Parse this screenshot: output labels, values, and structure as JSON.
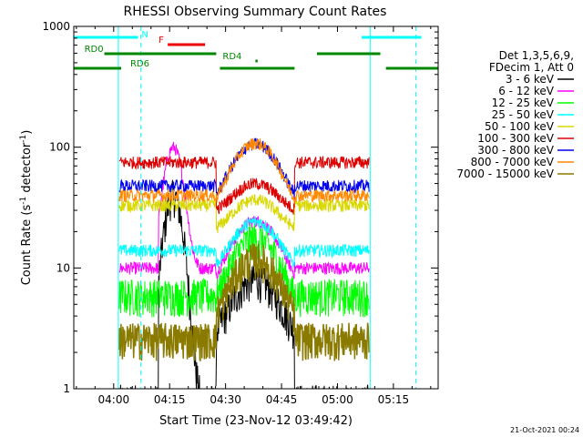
{
  "chart_data": {
    "type": "line",
    "title": "RHESSI Observing Summary Count Rates",
    "xlabel": "Start Time (23-Nov-12 03:49:42)",
    "ylabel": "Count Rate (s⁻¹ detector⁻¹)",
    "ylabel_main": "Count Rate (s",
    "ylabel_sup1": "-1",
    "ylabel_mid": " detector",
    "ylabel_sup2": "-1",
    "ylabel_end": ")",
    "yscale": "log",
    "ylim": [
      1,
      1000
    ],
    "xlim_minutes": [
      -10.7,
      87.0
    ],
    "x_ticks": [
      {
        "m": 0,
        "label": "04:00"
      },
      {
        "m": 15,
        "label": "04:15"
      },
      {
        "m": 30,
        "label": "04:30"
      },
      {
        "m": 45,
        "label": "04:45"
      },
      {
        "m": 60,
        "label": "05:00"
      },
      {
        "m": 75,
        "label": "05:15"
      }
    ],
    "y_ticks": [
      {
        "v": 1,
        "label": "1"
      },
      {
        "v": 10,
        "label": "10"
      },
      {
        "v": 100,
        "label": "100"
      },
      {
        "v": 1000,
        "label": "1000"
      }
    ],
    "legend_header": [
      "Det 1,3,5,6,9,",
      "FDecim 1, Att 0"
    ],
    "legend_position": "right",
    "series": [
      {
        "name": "3 - 6 keV",
        "color": "#000000",
        "base": 0.8,
        "peak": 8,
        "spike": 40
      },
      {
        "name": "6 - 12 keV",
        "color": "#ff00ff",
        "base": 10,
        "peak": 20,
        "spike": 100
      },
      {
        "name": "12 - 25 keV",
        "color": "#00ff00",
        "base": 6,
        "peak": 15
      },
      {
        "name": "25 - 50 keV",
        "color": "#00ffff",
        "base": 14,
        "peak": 18
      },
      {
        "name": "50 - 100 keV",
        "color": "#d8d800",
        "base": 33,
        "peak": 22
      },
      {
        "name": "100 - 300 keV",
        "color": "#dd0000",
        "base": 75,
        "peak": 50
      },
      {
        "name": "300 - 800 keV",
        "color": "#0000ee",
        "base": 48,
        "peak": 85
      },
      {
        "name": "800 - 7000 keV",
        "color": "#ff8800",
        "base": 40,
        "peak": 90
      },
      {
        "name": "7000 - 15000 keV",
        "color": "#8a7a00",
        "base": 2.6,
        "peak": 12
      }
    ],
    "data_windows_minutes": [
      [
        1.5,
        27.5
      ],
      [
        48.5,
        68.5
      ]
    ],
    "night_window_minutes": [
      27.5,
      48.5
    ],
    "saa_lines_minutes": [
      7.3,
      81.0
    ],
    "flag_bars": [
      {
        "label": "N",
        "color": "#00ffff",
        "segments": [
          [
            -10.7,
            6.5
          ],
          [
            66.5,
            82.5
          ]
        ],
        "level": 0
      },
      {
        "label": "F",
        "color": "#ee0000",
        "segments": [
          [
            14.5,
            24.5
          ]
        ],
        "level": 1
      },
      {
        "label": "RD0",
        "color": "#008800",
        "segments": [
          [
            -2.5,
            27.5
          ],
          [
            54.5,
            71.5
          ]
        ],
        "level": 2
      },
      {
        "label": "RD4",
        "color": "#008800",
        "segments": [
          [
            38.0,
            38.6
          ]
        ],
        "level": 3
      },
      {
        "label": "RD6",
        "color": "#008800",
        "segments": [
          [
            -10.7,
            2.0
          ],
          [
            28.5,
            48.5
          ],
          [
            73.0,
            87.0
          ]
        ],
        "level": 4
      }
    ],
    "timestamp": "21-Oct-2021 00:24"
  }
}
